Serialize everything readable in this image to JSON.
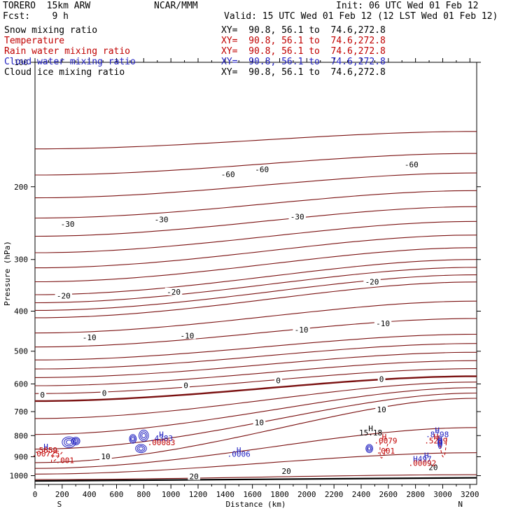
{
  "header": {
    "model": "TORERO  15km ARW",
    "org": "NCAR/MMM",
    "init": "Init: 06 UTC Wed 01 Feb 12",
    "fcst": "Fcst:    9 h",
    "valid": "Valid: 15 UTC Wed 01 Feb 12 (12 LST Wed 01 Feb 12)"
  },
  "legend": [
    {
      "label": "Snow mixing ratio",
      "xy": "XY=  90.8, 56.1 to  74.6,272.8",
      "color": "#000000"
    },
    {
      "label": "Temperature",
      "xy": "XY=  90.8, 56.1 to  74.6,272.8",
      "color": "#c00000"
    },
    {
      "label": "Rain water mixing ratio",
      "xy": "XY=  90.8, 56.1 to  74.6,272.8",
      "color": "#c00000"
    },
    {
      "label": "Cloud water mixing ratio",
      "xy": "XY=  90.8, 56.1 to  74.6,272.8",
      "color": "#2020c0"
    },
    {
      "label": "Cloud ice mixing ratio",
      "xy": "XY=  90.8, 56.1 to  74.6,272.8",
      "color": "#000000"
    }
  ],
  "chart_data": {
    "type": "line",
    "xlabel": "Distance (km)",
    "ylabel": "Pressure (hPa)",
    "xlim": [
      0,
      3250
    ],
    "ylim": [
      1050,
      100
    ],
    "xticks": [
      0,
      100,
      200,
      300,
      400,
      500,
      600,
      700,
      800,
      900,
      1000,
      1100,
      1200,
      1300,
      1400,
      1500,
      1600,
      1700,
      1800,
      1900,
      2000,
      2100,
      2200,
      2300,
      2400,
      2500,
      2600,
      2700,
      2800,
      2900,
      3000,
      3100,
      3200
    ],
    "xtick_labels": [
      "0",
      "200",
      "400",
      "600",
      "800",
      "1000",
      "1200",
      "1400",
      "1600",
      "1800",
      "2000",
      "2200",
      "2400",
      "2600",
      "2800",
      "3000",
      "3200"
    ],
    "ytick_labels": [
      "100",
      "200",
      "300",
      "400",
      "500",
      "600",
      "700",
      "800",
      "900",
      "1000"
    ],
    "yticks": [
      100,
      200,
      300,
      400,
      500,
      600,
      700,
      800,
      900,
      1000
    ],
    "left_end_label": "S",
    "right_end_label": "N",
    "isotherms": [
      {
        "level": -60,
        "label": "-60",
        "x": [
          0,
          3250
        ],
        "y": [
          162,
          147
        ]
      },
      {
        "level": -30,
        "label": "-30",
        "x": [
          0,
          3250
        ],
        "y": [
          365,
          300
        ]
      },
      {
        "level": -20,
        "label": "-20",
        "x": [
          0,
          3250
        ],
        "y": [
          415,
          340
        ]
      },
      {
        "level": -10,
        "label": "-10",
        "x": [
          0,
          3250
        ],
        "y": [
          525,
          455
        ]
      },
      {
        "level": 0,
        "label": "0",
        "x": [
          0,
          3250
        ],
        "y": [
          660,
          575
        ]
      },
      {
        "level": 10,
        "label": "10",
        "x": [
          0,
          3250
        ],
        "y": [
          930,
          650
        ]
      },
      {
        "level": 20,
        "label": "20",
        "x": [
          0,
          3250
        ],
        "y": [
          1022,
          995
        ]
      }
    ],
    "annotations": [
      {
        "text": "-60",
        "x": 1420,
        "y": 188,
        "color": "#000000"
      },
      {
        "text": "-60",
        "x": 1670,
        "y": 183,
        "color": "#000000"
      },
      {
        "text": "-60",
        "x": 2770,
        "y": 178,
        "color": "#000000"
      },
      {
        "text": "-30",
        "x": 240,
        "y": 248,
        "color": "#000000"
      },
      {
        "text": "-30",
        "x": 930,
        "y": 242,
        "color": "#000000"
      },
      {
        "text": "-30",
        "x": 1930,
        "y": 238,
        "color": "#000000"
      },
      {
        "text": "-20",
        "x": 210,
        "y": 370,
        "color": "#000000"
      },
      {
        "text": "-20",
        "x": 1020,
        "y": 362,
        "color": "#000000"
      },
      {
        "text": "-20",
        "x": 2480,
        "y": 342,
        "color": "#000000"
      },
      {
        "text": "-10",
        "x": 400,
        "y": 467,
        "color": "#000000"
      },
      {
        "text": "-10",
        "x": 1120,
        "y": 462,
        "color": "#000000"
      },
      {
        "text": "-10",
        "x": 1960,
        "y": 447,
        "color": "#000000"
      },
      {
        "text": "-10",
        "x": 2560,
        "y": 432,
        "color": "#000000"
      },
      {
        "text": "0",
        "x": 55,
        "y": 643,
        "color": "#000000"
      },
      {
        "text": "0",
        "x": 510,
        "y": 636,
        "color": "#000000"
      },
      {
        "text": "0",
        "x": 1110,
        "y": 610,
        "color": "#000000"
      },
      {
        "text": "0",
        "x": 1790,
        "y": 593,
        "color": "#000000"
      },
      {
        "text": "0",
        "x": 2550,
        "y": 588,
        "color": "#000000"
      },
      {
        "text": "10",
        "x": 2550,
        "y": 697,
        "color": "#000000"
      },
      {
        "text": "10",
        "x": 1650,
        "y": 749,
        "color": "#000000"
      },
      {
        "text": "10",
        "x": 520,
        "y": 906,
        "color": "#000000"
      },
      {
        "text": "20",
        "x": 1170,
        "y": 1012,
        "color": "#000000"
      },
      {
        "text": "20",
        "x": 1850,
        "y": 983,
        "color": "#000000"
      },
      {
        "text": "20",
        "x": 2930,
        "y": 962,
        "color": "#000000"
      },
      {
        "text": "H",
        "x": 2470,
        "y": 775,
        "color": "#000000"
      },
      {
        "text": "15.18",
        "x": 2470,
        "y": 793,
        "color": "#000000"
      },
      {
        "text": "H",
        "x": 930,
        "y": 800,
        "color": "#2020c0"
      },
      {
        "text": ".4383",
        "x": 930,
        "y": 818,
        "color": "#2020c0"
      },
      {
        "text": ".00083",
        "x": 930,
        "y": 838,
        "color": "#c00000"
      },
      {
        "text": "H",
        "x": 80,
        "y": 857,
        "color": "#2020c0"
      },
      {
        "text": ".5659",
        "x": 80,
        "y": 875,
        "color": "#c00000"
      },
      {
        "text": ".00725",
        "x": 80,
        "y": 892,
        "color": "#c00000"
      },
      {
        "text": ".001",
        "x": 220,
        "y": 925,
        "color": "#c00000"
      },
      {
        "text": "H",
        "x": 1500,
        "y": 875,
        "color": "#2020c0"
      },
      {
        "text": ".0006",
        "x": 1500,
        "y": 893,
        "color": "#2020c0"
      },
      {
        "text": ".0079",
        "x": 2580,
        "y": 830,
        "color": "#c00000"
      },
      {
        "text": ".001",
        "x": 2580,
        "y": 878,
        "color": "#c00000"
      },
      {
        "text": "H",
        "x": 2570,
        "y": 812,
        "color": "#c00000"
      },
      {
        "text": "H",
        "x": 2880,
        "y": 900,
        "color": "#2020c0"
      },
      {
        "text": "H497",
        "x": 2850,
        "y": 918,
        "color": "#2020c0"
      },
      {
        "text": ".00092",
        "x": 2850,
        "y": 940,
        "color": "#c00000"
      },
      {
        "text": "H",
        "x": 2960,
        "y": 782,
        "color": "#2020c0"
      },
      {
        "text": ".8198",
        "x": 2960,
        "y": 800,
        "color": "#2020c0"
      },
      {
        "text": "H",
        "x": 2950,
        "y": 812,
        "color": "#c00000"
      },
      {
        "text": ".5239",
        "x": 2950,
        "y": 830,
        "color": "#c00000"
      }
    ]
  }
}
